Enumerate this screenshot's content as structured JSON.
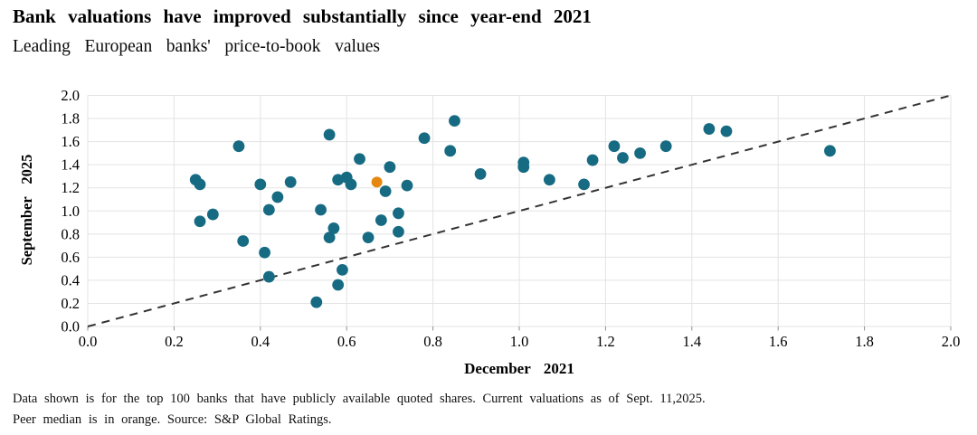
{
  "header": {
    "title": "Bank valuations have improved substantially since year-end 2021",
    "subtitle": "Leading European banks' price-to-book values"
  },
  "footnote": {
    "line1": "Data shown is for the top 100 banks that have publicly available quoted shares.  Current valuations as of Sept. 11,2025.",
    "line2": "Peer median is in orange.  Source: S&P Global Ratings."
  },
  "chart_data": {
    "type": "scatter",
    "title": "Bank valuations have improved substantially since year-end 2021",
    "subtitle": "Leading European banks' price-to-book values",
    "xlabel": "December 2021",
    "ylabel": "September 2025",
    "xlim": [
      0.0,
      2.0
    ],
    "ylim": [
      0.0,
      2.0
    ],
    "xticks": [
      0.0,
      0.2,
      0.4,
      0.6,
      0.8,
      1.0,
      1.2,
      1.4,
      1.6,
      1.8,
      2.0
    ],
    "yticks": [
      0.0,
      0.2,
      0.4,
      0.6,
      0.8,
      1.0,
      1.2,
      1.4,
      1.6,
      1.8,
      2.0
    ],
    "grid": true,
    "legend": "none",
    "reference_line": {
      "meaning": "parity line y = x",
      "style": "dashed",
      "color": "#333333",
      "from": [
        0.0,
        0.0
      ],
      "to": [
        2.0,
        2.0
      ]
    },
    "series": [
      {
        "name": "banks",
        "color": "#166B82",
        "marker_radius": 6.4,
        "points": [
          [
            0.25,
            1.27
          ],
          [
            0.26,
            1.23
          ],
          [
            0.26,
            0.91
          ],
          [
            0.29,
            0.97
          ],
          [
            0.35,
            1.56
          ],
          [
            0.36,
            0.74
          ],
          [
            0.4,
            1.23
          ],
          [
            0.41,
            0.64
          ],
          [
            0.42,
            1.01
          ],
          [
            0.42,
            0.43
          ],
          [
            0.44,
            1.12
          ],
          [
            0.47,
            1.25
          ],
          [
            0.53,
            0.21
          ],
          [
            0.54,
            1.01
          ],
          [
            0.56,
            1.66
          ],
          [
            0.56,
            0.77
          ],
          [
            0.57,
            0.85
          ],
          [
            0.58,
            1.27
          ],
          [
            0.58,
            0.36
          ],
          [
            0.59,
            0.49
          ],
          [
            0.6,
            1.29
          ],
          [
            0.61,
            1.23
          ],
          [
            0.63,
            1.45
          ],
          [
            0.65,
            0.77
          ],
          [
            0.68,
            0.92
          ],
          [
            0.69,
            1.17
          ],
          [
            0.7,
            1.38
          ],
          [
            0.72,
            0.98
          ],
          [
            0.72,
            0.82
          ],
          [
            0.74,
            1.22
          ],
          [
            0.78,
            1.63
          ],
          [
            0.84,
            1.52
          ],
          [
            0.85,
            1.78
          ],
          [
            0.91,
            1.32
          ],
          [
            1.01,
            1.42
          ],
          [
            1.01,
            1.38
          ],
          [
            1.07,
            1.27
          ],
          [
            1.15,
            1.23
          ],
          [
            1.17,
            1.44
          ],
          [
            1.22,
            1.56
          ],
          [
            1.24,
            1.46
          ],
          [
            1.28,
            1.5
          ],
          [
            1.34,
            1.56
          ],
          [
            1.44,
            1.71
          ],
          [
            1.48,
            1.69
          ],
          [
            1.72,
            1.52
          ]
        ]
      },
      {
        "name": "peer-median",
        "color": "#E6870F",
        "marker_radius": 6.0,
        "points": [
          [
            0.67,
            1.25
          ]
        ]
      }
    ],
    "colors": {
      "gridline": "#e3e3e3",
      "tick_mark": "#8f8f8f",
      "bank_point": "#166B82",
      "peer_median_point": "#E6870F",
      "reference_line": "#333333"
    }
  }
}
